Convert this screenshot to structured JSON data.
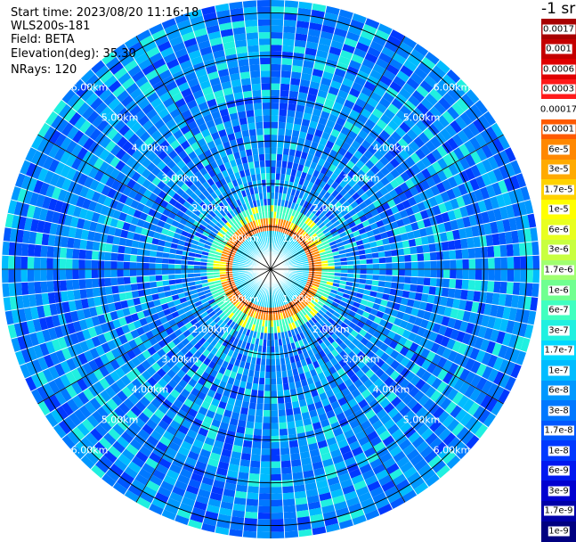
{
  "header": {
    "start_time": "Start time: 2023/08/20 11:16:18",
    "instrument": "WLS200s-181",
    "field": "Field: BETA",
    "elevation": "Elevation(deg): 35.30",
    "nrays": "NRays: 120"
  },
  "chart_data": {
    "type": "polar-ppi",
    "field": "BETA",
    "elevation_deg": 35.3,
    "n_rays": 120,
    "range_rings_km": [
      1,
      2,
      3,
      4,
      5,
      6
    ],
    "ring_labels": [
      "1.00km",
      "2.00km",
      "3.00km",
      "4.00km",
      "5.00km",
      "6.00km"
    ],
    "max_range_km": 6.3,
    "ring_pattern_km": [
      {
        "range_km": [
          0.0,
          0.3
        ],
        "level": "1e-6"
      },
      {
        "range_km": [
          0.3,
          0.9
        ],
        "level": "1.7e-7"
      },
      {
        "range_km": [
          0.9,
          1.05
        ],
        "level": "0.0001"
      },
      {
        "range_km": [
          1.05,
          1.2
        ],
        "level": "6e-5"
      },
      {
        "range_km": [
          1.2,
          1.5
        ],
        "level": "6e-7"
      },
      {
        "range_km": [
          1.5,
          6.3
        ],
        "level": "1e-8"
      }
    ],
    "colorbar": {
      "title": "-1 sr",
      "levels": [
        "0.0017",
        "0.001",
        "0.0006",
        "0.0003",
        "0.00017",
        "0.0001",
        "6e-5",
        "3e-5",
        "1.7e-5",
        "1e-5",
        "6e-6",
        "3e-6",
        "1.7e-6",
        "1e-6",
        "6e-7",
        "3e-7",
        "1.7e-7",
        "1e-7",
        "6e-8",
        "3e-8",
        "1.7e-8",
        "1e-8",
        "6e-9",
        "3e-9",
        "1.7e-9",
        "1e-9"
      ],
      "colors": [
        "#a80000",
        "#c40000",
        "#e00000",
        "#ff1a1a",
        "#ffffff",
        "#ff5a00",
        "#ff8800",
        "#ffaa00",
        "#ffd200",
        "#ffff00",
        "#e8ff20",
        "#c8ff40",
        "#a0ff70",
        "#70ff90",
        "#40ffc0",
        "#20f0e0",
        "#00d8ff",
        "#00bcff",
        "#0098ff",
        "#0078ff",
        "#0058ff",
        "#0038ff",
        "#0018f0",
        "#0000d0",
        "#0000a8",
        "#000080"
      ]
    }
  }
}
